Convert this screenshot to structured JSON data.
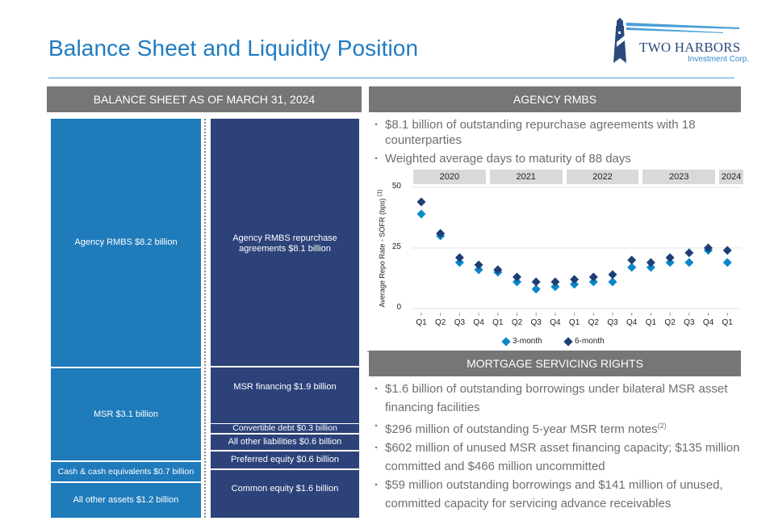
{
  "page": {
    "title": "Balance Sheet and Liquidity Position",
    "logo": {
      "name": "TWO HARBORS",
      "subtitle": "Investment Corp.",
      "icon": "lighthouse-icon"
    }
  },
  "balance_sheet": {
    "header": "BALANCE SHEET AS OF MARCH 31, 2024",
    "assets": [
      {
        "label": "Agency RMBS $8.2 billion",
        "value_billion": 8.2
      },
      {
        "label": "MSR $3.1 billion",
        "value_billion": 3.1
      },
      {
        "label": "Cash & cash equivalents $0.7 billion",
        "value_billion": 0.7
      },
      {
        "label": "All other assets $1.2 billion",
        "value_billion": 1.2
      }
    ],
    "liabilities_equity": [
      {
        "label": "Agency RMBS repurchase agreements $8.1 billion",
        "value_billion": 8.1
      },
      {
        "label": "MSR financing $1.9 billion",
        "value_billion": 1.9
      },
      {
        "label": "Convertible debt $0.3 billion",
        "value_billion": 0.3
      },
      {
        "label": "All other liabilities $0.6 billion",
        "value_billion": 0.6
      },
      {
        "label": "Preferred equity $0.6 billion",
        "value_billion": 0.6
      },
      {
        "label": "Common equity $1.6 billion",
        "value_billion": 1.6
      }
    ]
  },
  "agency_rmbs": {
    "header": "AGENCY RMBS",
    "bullets": [
      "$8.1 billion of outstanding repurchase agreements with 18 counterparties",
      "Weighted average days to maturity of 88 days"
    ]
  },
  "msr": {
    "header": "MORTGAGE SERVICING RIGHTS",
    "bullets": [
      {
        "text": "$1.6 billion of outstanding borrowings under bilateral MSR asset financing facilities",
        "sup": ""
      },
      {
        "text": "$296 million of outstanding 5-year MSR term notes",
        "sup": "(2)"
      },
      {
        "text": "$602 million of unused MSR asset financing capacity; $135 million committed and $466 million uncommitted",
        "sup": ""
      },
      {
        "text": "$59 million outstanding borrowings and $141 million of unused, committed capacity for servicing advance receivables",
        "sup": ""
      }
    ]
  },
  "chart_data": {
    "type": "scatter",
    "title": "",
    "ylabel": "Average Repo Rate - SOFR (bps)",
    "ylabel_sup": "(1)",
    "xlabel": "",
    "ylim": [
      0,
      50
    ],
    "yticks": [
      0,
      25,
      50
    ],
    "grid": true,
    "year_groups": [
      {
        "label": "2020",
        "count": 4
      },
      {
        "label": "2021",
        "count": 4
      },
      {
        "label": "2022",
        "count": 4
      },
      {
        "label": "2023",
        "count": 4
      },
      {
        "label": "2024",
        "count": 1
      }
    ],
    "categories": [
      "Q1",
      "Q2",
      "Q3",
      "Q4",
      "Q1",
      "Q2",
      "Q3",
      "Q4",
      "Q1",
      "Q2",
      "Q3",
      "Q4",
      "Q1",
      "Q2",
      "Q3",
      "Q4",
      "Q1"
    ],
    "series": [
      {
        "name": "3-month",
        "color": "#0a86c9",
        "values": [
          39,
          30,
          19,
          16,
          15,
          11,
          8,
          9,
          10,
          11,
          11,
          17,
          17,
          19,
          19,
          24,
          19
        ]
      },
      {
        "name": "6-month",
        "color": "#1d3f76",
        "values": [
          44,
          31,
          21,
          18,
          16,
          13,
          11,
          11,
          12,
          13,
          14,
          20,
          19,
          21,
          23,
          25,
          24
        ]
      }
    ],
    "legend": "bottom-center"
  }
}
